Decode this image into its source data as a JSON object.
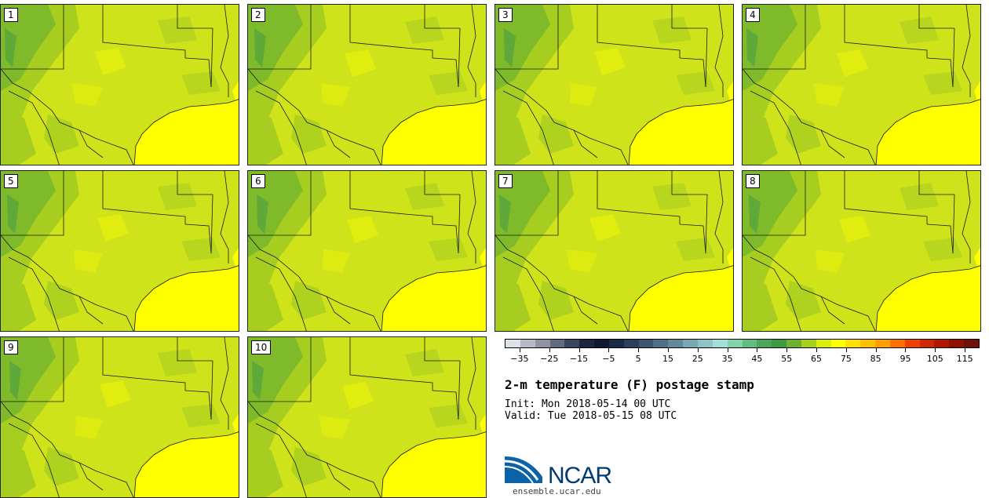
{
  "members": [
    "1",
    "2",
    "3",
    "4",
    "5",
    "6",
    "7",
    "8",
    "9",
    "10"
  ],
  "colorbar": {
    "colors": [
      "#dfe1e8",
      "#b7bac5",
      "#8f94a3",
      "#616a80",
      "#3a4560",
      "#1c2640",
      "#0f1a30",
      "#192a44",
      "#2a3f5b",
      "#3a5672",
      "#4d6f87",
      "#5f8a9c",
      "#78a9b3",
      "#8fc4c6",
      "#a0e0d8",
      "#7fd4a9",
      "#5fbf80",
      "#48a85a",
      "#3c9a3f",
      "#6bb32e",
      "#a8cf1b",
      "#dded0b",
      "#ffff00",
      "#ffe000",
      "#ffc000",
      "#ffa000",
      "#ff7000",
      "#f04000",
      "#d02800",
      "#b01800",
      "#901000",
      "#701008"
    ],
    "tick_labels": [
      "−35",
      "−25",
      "−15",
      "−5",
      "5",
      "15",
      "25",
      "35",
      "45",
      "55",
      "65",
      "75",
      "85",
      "95",
      "105",
      "115"
    ]
  },
  "title": "2-m temperature (F) postage stamp",
  "init": "Init: Mon 2018-05-14 00 UTC",
  "valid": "Valid: Tue 2018-05-15 08 UTC",
  "logo": {
    "name": "NCAR",
    "url": "ensemble.ucar.edu"
  },
  "map_colors": {
    "base": "#cfe31a",
    "dark": "#7eba2a",
    "mid": "#a6cd1f",
    "light": "#e8f00c",
    "water": "#ffff00"
  }
}
